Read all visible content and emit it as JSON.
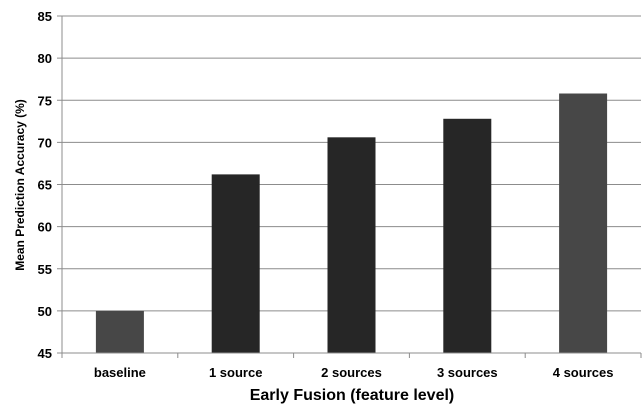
{
  "chart_data": {
    "type": "bar",
    "categories": [
      "baseline",
      "1 source",
      "2 sources",
      "3 sources",
      "4 sources"
    ],
    "values": [
      50,
      66.2,
      70.6,
      72.8,
      75.8
    ],
    "xlabel": "Early Fusion (feature level)",
    "ylabel": "Mean Prediction Accuracy (%)",
    "ylim": [
      45,
      85
    ],
    "yticks": [
      45,
      50,
      55,
      60,
      65,
      70,
      75,
      80,
      85
    ],
    "grid": true,
    "legend": "none",
    "colors": {
      "bars": [
        "#474747",
        "#262626",
        "#262626",
        "#262626",
        "#474747"
      ],
      "grid": "#8c8c8c",
      "axis": "#8c8c8c"
    }
  }
}
